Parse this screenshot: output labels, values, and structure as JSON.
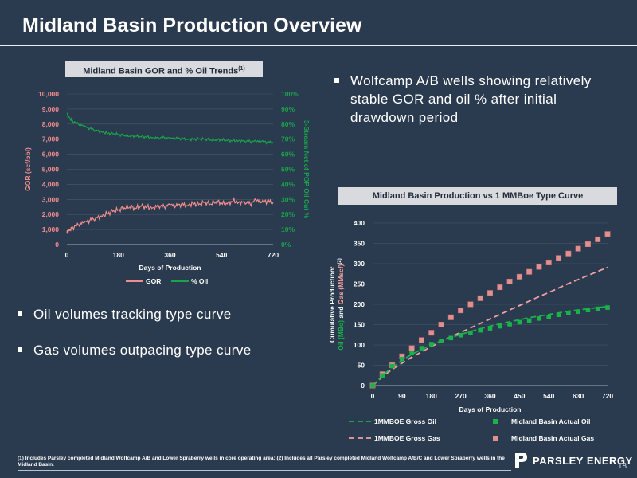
{
  "page": {
    "title": "Midland Basin Production Overview",
    "page_number": "18",
    "logo_text": "PARSLEY ENERGY",
    "footnote": "(1) Includes Parsley completed Midland Wolfcamp A/B and Lower Spraberry wells in core operating area; (2) Includes all Parsley completed Midland Wolfcamp A/B/C and Lower Spraberry wells in the Midland Basin."
  },
  "bullets_top": [
    "Wolfcamp A/B wells showing relatively stable GOR and oil % after initial drawdown period"
  ],
  "bullets_bottom": [
    "Oil volumes tracking type curve",
    "Gas volumes outpacing type curve"
  ],
  "colors": {
    "background": "#2a3a4f",
    "gor": "#f08c8c",
    "oil_pct": "#1aa34a",
    "oil_green": "#19b24b",
    "gas_pink": "#f0a0a0",
    "gas_marker": "#e28f8f"
  },
  "chart_data": [
    {
      "type": "line",
      "title": "Midland Basin GOR and % Oil Trends",
      "title_note": "(1)",
      "xlabel": "Days of Production",
      "ylabel": "GOR (scf/bbl)",
      "y2label": "3-Stream Net of POP Oil Cut %",
      "xlim": [
        0,
        720
      ],
      "ylim": [
        0,
        10000
      ],
      "y2lim": [
        0,
        100
      ],
      "x_ticks": [
        "0",
        "180",
        "360",
        "540",
        "720"
      ],
      "y_ticks": [
        "0",
        "1,000",
        "2,000",
        "3,000",
        "4,000",
        "5,000",
        "6,000",
        "7,000",
        "8,000",
        "9,000",
        "10,000"
      ],
      "y2_ticks": [
        "0%",
        "10%",
        "20%",
        "30%",
        "40%",
        "50%",
        "60%",
        "70%",
        "80%",
        "90%",
        "100%"
      ],
      "legend_position": "bottom",
      "grid": true,
      "series": [
        {
          "name": "GOR",
          "axis": "left",
          "x": [
            0,
            10,
            20,
            40,
            60,
            80,
            100,
            120,
            140,
            160,
            180,
            200,
            220,
            240,
            260,
            280,
            300,
            320,
            340,
            360,
            380,
            400,
            420,
            440,
            460,
            480,
            500,
            520,
            540,
            560,
            580,
            600,
            620,
            640,
            660,
            680,
            700,
            720
          ],
          "values": [
            800,
            1000,
            1150,
            1300,
            1450,
            1600,
            1750,
            1900,
            2050,
            2200,
            2300,
            2450,
            2500,
            2400,
            2550,
            2500,
            2450,
            2600,
            2500,
            2650,
            2550,
            2700,
            2600,
            2750,
            2650,
            2800,
            2700,
            2850,
            2750,
            2700,
            2900,
            2800,
            2850,
            2700,
            2950,
            2800,
            2900,
            2800
          ]
        },
        {
          "name": "% Oil",
          "axis": "right",
          "x": [
            0,
            10,
            20,
            40,
            60,
            80,
            100,
            120,
            140,
            160,
            180,
            200,
            220,
            240,
            260,
            280,
            300,
            320,
            340,
            360,
            380,
            400,
            420,
            440,
            460,
            480,
            500,
            520,
            540,
            560,
            580,
            600,
            620,
            640,
            660,
            680,
            700,
            720
          ],
          "values": [
            87,
            84,
            82,
            80,
            78.5,
            77,
            76,
            75,
            74,
            73.5,
            73,
            72.5,
            72,
            72,
            71.5,
            71.5,
            71,
            71,
            71,
            70.5,
            70.5,
            70.5,
            70,
            70,
            70,
            70,
            69.5,
            69.5,
            69.5,
            69,
            69,
            69,
            69,
            68.5,
            68.5,
            68.5,
            68,
            68
          ]
        }
      ]
    },
    {
      "type": "line",
      "title": "Midland Basin Production vs 1 MMBoe Type Curve",
      "xlabel": "Days of Production",
      "ylabel_line1": "Cumulative Production:",
      "ylabel_oil": "Oil (MBo)",
      "ylabel_and": " and ",
      "ylabel_gas": "Gas (MMscf)",
      "ylabel_note": "(2)",
      "xlim": [
        0,
        720
      ],
      "ylim": [
        0,
        400
      ],
      "x_ticks": [
        "0",
        "90",
        "180",
        "270",
        "360",
        "450",
        "540",
        "630",
        "720"
      ],
      "y_ticks": [
        "0",
        "50",
        "100",
        "150",
        "200",
        "250",
        "300",
        "350",
        "400"
      ],
      "legend_position": "bottom",
      "grid": true,
      "series": [
        {
          "name": "1MMBOE Gross Oil",
          "style": "dashed",
          "x": [
            0,
            30,
            60,
            90,
            120,
            150,
            180,
            210,
            240,
            270,
            300,
            330,
            360,
            390,
            420,
            450,
            480,
            510,
            540,
            570,
            600,
            630,
            660,
            690,
            720
          ],
          "values": [
            0,
            25,
            45,
            62,
            77,
            89,
            100,
            110,
            118,
            126,
            133,
            140,
            146,
            152,
            157,
            162,
            167,
            171,
            175,
            179,
            183,
            186,
            189,
            192,
            195
          ]
        },
        {
          "name": "Midland Basin Actual Oil",
          "style": "marker",
          "x": [
            0,
            30,
            60,
            90,
            120,
            150,
            180,
            210,
            240,
            270,
            300,
            330,
            360,
            390,
            420,
            450,
            480,
            510,
            540,
            570,
            600,
            630,
            660,
            690,
            720
          ],
          "values": [
            0,
            25,
            48,
            65,
            80,
            92,
            102,
            110,
            117,
            124,
            130,
            136,
            141,
            146,
            151,
            156,
            160,
            165,
            169,
            174,
            178,
            182,
            186,
            189,
            192
          ]
        },
        {
          "name": "1MMBOE Gross Gas",
          "style": "dashed",
          "x": [
            0,
            30,
            60,
            90,
            120,
            150,
            180,
            210,
            240,
            270,
            300,
            330,
            360,
            390,
            420,
            450,
            480,
            510,
            540,
            570,
            600,
            630,
            660,
            690,
            720
          ],
          "values": [
            0,
            22,
            40,
            55,
            70,
            83,
            96,
            108,
            120,
            131,
            142,
            153,
            164,
            175,
            186,
            197,
            208,
            219,
            229,
            240,
            251,
            261,
            271,
            281,
            291
          ]
        },
        {
          "name": "Midland Basin Actual Gas",
          "style": "marker",
          "x": [
            0,
            30,
            60,
            90,
            120,
            150,
            180,
            210,
            240,
            270,
            300,
            330,
            360,
            390,
            420,
            450,
            480,
            510,
            540,
            570,
            600,
            630,
            660,
            690,
            720
          ],
          "values": [
            0,
            28,
            50,
            72,
            92,
            112,
            130,
            150,
            168,
            185,
            200,
            215,
            228,
            242,
            256,
            268,
            280,
            292,
            303,
            314,
            325,
            337,
            348,
            360,
            373
          ]
        }
      ]
    }
  ]
}
